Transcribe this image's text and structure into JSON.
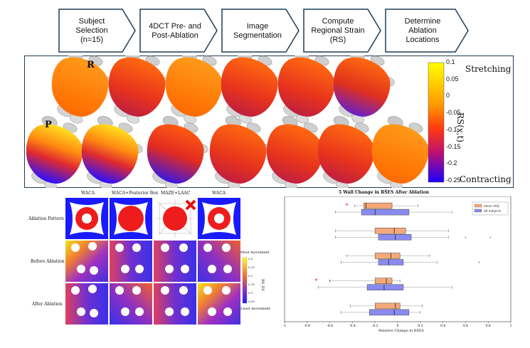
{
  "flow": {
    "steps": [
      {
        "label": "Subject\nSelection\n(n=15)"
      },
      {
        "label": "4DCT Pre- and\nPost-Ablation"
      },
      {
        "label": "Image\nSegmentation"
      },
      {
        "label": "Compute\nRegional Strain\n(RS)"
      },
      {
        "label": "Determine\nAblation\nLocations"
      }
    ]
  },
  "atria_panel": {
    "row_r_label": "R",
    "row_p_label": "P",
    "colorbar": {
      "ticks": [
        "0.1",
        "0.05",
        "0",
        "-0.05",
        "-0.1",
        "-0.15",
        "-0.2",
        "-0.25"
      ],
      "top_label": "Stretching",
      "bottom_label": "Contracting",
      "axis_label": "RS(x,t)"
    },
    "colors": {
      "high": "#ffff00",
      "mid": "#ff6a00",
      "low": "#1a00ff"
    }
  },
  "ablation_maps": {
    "columns": [
      "WACA",
      "WACA+Posterior Box",
      "MAZE+LAAC",
      "WACA"
    ],
    "rows": [
      "Ablation Pattern",
      "Before Ablation",
      "After Ablation"
    ],
    "colorbar": {
      "top_label": "Most movement",
      "bottom_label": "Least movement",
      "ticks": [
        "0.3",
        "0.25",
        "0.2",
        "0.15",
        "0.1",
        "0.05"
      ],
      "axis_label": "RS_ES"
    }
  },
  "chart_data": {
    "type": "box",
    "title": "5 Wall Change in RS̄ES After Ablation",
    "xlabel": "Relative Change in RS̄ES",
    "xlim": [
      -1,
      1
    ],
    "xticks": [
      "-1",
      "-0.8",
      "-0.6",
      "-0.4",
      "-0.2",
      "0",
      "0.2",
      "0.4",
      "0.6",
      "0.8",
      "1"
    ],
    "categories": [
      "Posterior",
      "Lateral",
      "Inferior",
      "Septal",
      "Anterior"
    ],
    "legend": {
      "position": "top-right",
      "entries": [
        "Sinus Only",
        "All Subjects"
      ]
    },
    "series": [
      {
        "name": "Sinus Only",
        "color": "#f4a97a",
        "boxes": [
          {
            "wmin": -0.38,
            "q1": -0.3,
            "median": -0.28,
            "q3": -0.05,
            "wmax": 0.18
          },
          {
            "wmin": -0.55,
            "q1": -0.2,
            "median": -0.03,
            "q3": 0.07,
            "wmax": 0.45
          },
          {
            "wmin": -0.45,
            "q1": -0.2,
            "median": -0.06,
            "q3": 0.02,
            "wmax": 0.28
          },
          {
            "wmin": -0.6,
            "q1": -0.2,
            "median": -0.1,
            "q3": -0.05,
            "wmax": 0.02
          },
          {
            "wmin": -0.42,
            "q1": -0.2,
            "median": -0.02,
            "q3": 0.02,
            "wmax": 0.22
          }
        ],
        "outliers": [
          [],
          [],
          [],
          [
            -0.6
          ],
          []
        ]
      },
      {
        "name": "All Subjects",
        "color": "#8a8af0",
        "boxes": [
          {
            "wmin": -0.55,
            "q1": -0.32,
            "median": -0.2,
            "q3": 0.1,
            "wmax": 0.48
          },
          {
            "wmin": -0.55,
            "q1": -0.17,
            "median": -0.02,
            "q3": 0.12,
            "wmax": 0.45
          },
          {
            "wmin": -0.5,
            "q1": -0.17,
            "median": -0.08,
            "q3": 0.05,
            "wmax": 0.35
          },
          {
            "wmin": -0.7,
            "q1": -0.27,
            "median": -0.12,
            "q3": 0.05,
            "wmax": 0.48
          },
          {
            "wmin": -0.5,
            "q1": -0.25,
            "median": -0.03,
            "q3": 0.1,
            "wmax": 0.2
          }
        ],
        "outliers": [
          [],
          [
            0.6,
            0.82
          ],
          [
            0.72
          ],
          [],
          []
        ]
      }
    ],
    "significance_marks": [
      {
        "category": "Posterior",
        "x": -0.45,
        "symbol": "*"
      },
      {
        "category": "Septal",
        "x": -0.72,
        "symbol": "*"
      }
    ]
  }
}
